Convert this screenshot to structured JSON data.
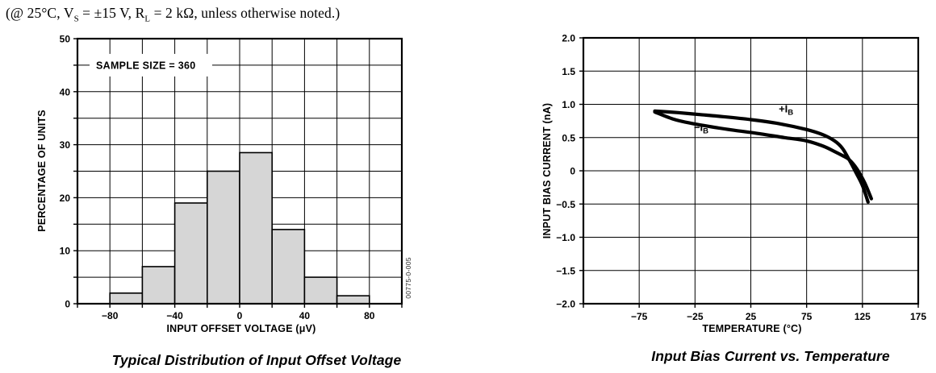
{
  "header": {
    "p1": "(@ 25°C, V",
    "s1": "S",
    "p2": " = ±15 V, R",
    "s2": "L",
    "p3": " = 2 kΩ, unless otherwise noted.)"
  },
  "chart_data": [
    {
      "type": "bar",
      "title": "Typical Distribution of Input Offset Voltage",
      "annotation": "SAMPLE SIZE = 360",
      "annotation_y": 45,
      "xlabel": "INPUT OFFSET VOLTAGE (μV)",
      "ylabel": "PERCENTAGE OF UNITS",
      "figure_code": "00775-0-005",
      "xlim": [
        -100,
        100
      ],
      "ylim": [
        0,
        50
      ],
      "x_grid_step": 20,
      "y_grid_step": 5,
      "bin_edges": [
        -100,
        -80,
        -60,
        -40,
        -20,
        0,
        20,
        40,
        60,
        80,
        100
      ],
      "values": [
        0,
        2,
        7,
        19,
        25,
        28.5,
        14,
        5,
        1.5,
        0
      ],
      "x_ticks": [
        {
          "v": -80,
          "label": "−80"
        },
        {
          "v": -40,
          "label": "−40"
        },
        {
          "v": 0,
          "label": "0"
        },
        {
          "v": 40,
          "label": "40"
        },
        {
          "v": 80,
          "label": "80"
        }
      ],
      "y_ticks": [
        {
          "v": 0,
          "label": "0"
        },
        {
          "v": 10,
          "label": "10"
        },
        {
          "v": 20,
          "label": "20"
        },
        {
          "v": 30,
          "label": "30"
        },
        {
          "v": 40,
          "label": "40"
        },
        {
          "v": 50,
          "label": "50"
        }
      ],
      "bar_fill": "#d6d6d6",
      "grid": "on",
      "legend": "none"
    },
    {
      "type": "line",
      "title": "Input Bias Current vs. Temperature",
      "xlabel": "TEMPERATURE (°C)",
      "ylabel": "INPUT BIAS CURRENT (nA)",
      "xlim": [
        -125,
        175
      ],
      "ylim": [
        -2,
        2
      ],
      "x_grid": [
        -75,
        -25,
        25,
        75,
        125
      ],
      "y_grid_step": 0.5,
      "x_ticks": [
        {
          "v": -75,
          "label": "−75"
        },
        {
          "v": -25,
          "label": "−25"
        },
        {
          "v": 25,
          "label": "25"
        },
        {
          "v": 75,
          "label": "75"
        },
        {
          "v": 125,
          "label": "125"
        },
        {
          "v": 175,
          "label": "175"
        }
      ],
      "y_ticks": [
        {
          "v": 2,
          "label": "2.0"
        },
        {
          "v": 1.5,
          "label": "1.5"
        },
        {
          "v": 1,
          "label": "1.0"
        },
        {
          "v": 0.5,
          "label": "0.5"
        },
        {
          "v": 0,
          "label": "0"
        },
        {
          "v": -0.5,
          "label": "−0.5"
        },
        {
          "v": -1,
          "label": "−1.0"
        },
        {
          "v": -1.5,
          "label": "−1.5"
        },
        {
          "v": -2,
          "label": "−2.0"
        }
      ],
      "series": [
        {
          "name": "+IB",
          "label_main": "+I",
          "label_sub": "B",
          "label_pos": {
            "x": 50,
            "y": 0.88
          },
          "points": [
            [
              -61,
              0.9
            ],
            [
              -40,
              0.875
            ],
            [
              -20,
              0.845
            ],
            [
              0,
              0.815
            ],
            [
              25,
              0.77
            ],
            [
              50,
              0.71
            ],
            [
              75,
              0.62
            ],
            [
              90,
              0.54
            ],
            [
              100,
              0.45
            ],
            [
              107,
              0.34
            ],
            [
              113,
              0.17
            ],
            [
              119,
              -0.02
            ],
            [
              125,
              -0.22
            ],
            [
              130,
              -0.47
            ]
          ]
        },
        {
          "name": "−IB",
          "label_main": "−I",
          "label_sub": "B",
          "label_pos": {
            "x": -26,
            "y": 0.6
          },
          "points": [
            [
              -61,
              0.885
            ],
            [
              -45,
              0.78
            ],
            [
              -30,
              0.72
            ],
            [
              -10,
              0.66
            ],
            [
              10,
              0.61
            ],
            [
              30,
              0.565
            ],
            [
              55,
              0.5
            ],
            [
              75,
              0.45
            ],
            [
              90,
              0.37
            ],
            [
              100,
              0.29
            ],
            [
              107,
              0.23
            ],
            [
              113,
              0.17
            ],
            [
              120,
              0.03
            ],
            [
              127,
              -0.18
            ],
            [
              133,
              -0.42
            ]
          ]
        }
      ],
      "grid": "on",
      "legend": "inline-curve-labels"
    }
  ]
}
